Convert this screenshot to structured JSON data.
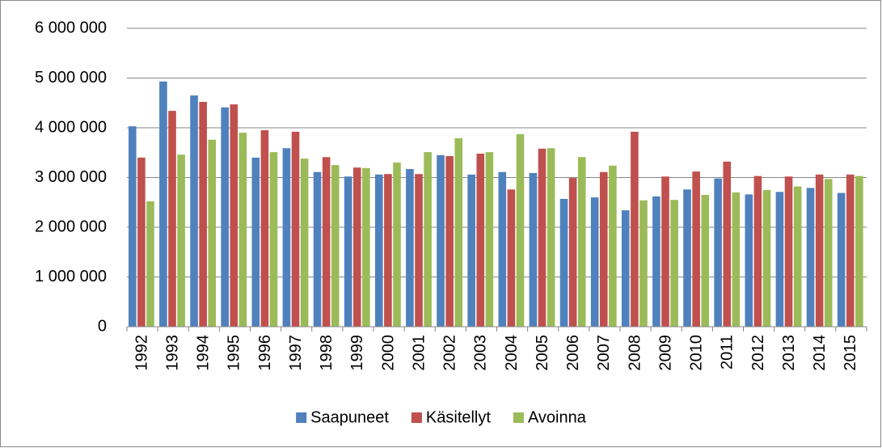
{
  "chart_data": {
    "type": "bar",
    "categories": [
      "1992",
      "1993",
      "1994",
      "1995",
      "1996",
      "1997",
      "1998",
      "1999",
      "2000",
      "2001",
      "2002",
      "2003",
      "2004",
      "2005",
      "2006",
      "2007",
      "2008",
      "2009",
      "2010",
      "2011",
      "2012",
      "2013",
      "2014",
      "2015"
    ],
    "series": [
      {
        "name": "Saapuneet",
        "color": "#4f81bd",
        "values": [
          4030000,
          4930000,
          4650000,
          4410000,
          3400000,
          3590000,
          3110000,
          3020000,
          3060000,
          3170000,
          3450000,
          3060000,
          3110000,
          3090000,
          2570000,
          2600000,
          2340000,
          2620000,
          2760000,
          2980000,
          2660000,
          2710000,
          2790000,
          2690000
        ]
      },
      {
        "name": "Käsitellyt",
        "color": "#c0504d",
        "values": [
          3400000,
          4340000,
          4520000,
          4470000,
          3950000,
          3920000,
          3410000,
          3200000,
          3070000,
          3070000,
          3430000,
          3480000,
          2760000,
          3580000,
          2990000,
          3110000,
          3920000,
          3020000,
          3120000,
          3320000,
          3030000,
          3020000,
          3060000,
          3060000
        ]
      },
      {
        "name": "Avoinna",
        "color": "#9bbb59",
        "values": [
          2520000,
          3460000,
          3760000,
          3900000,
          3510000,
          3380000,
          3250000,
          3190000,
          3300000,
          3510000,
          3790000,
          3510000,
          3870000,
          3590000,
          3410000,
          3240000,
          2540000,
          2550000,
          2650000,
          2700000,
          2750000,
          2820000,
          2970000,
          3030000
        ]
      }
    ],
    "ylim": [
      0,
      6000000
    ],
    "yticks": [
      0,
      {
        "value": 1000000,
        "label": "1 000 000"
      },
      {
        "value": 2000000,
        "label": "2 000 000"
      },
      {
        "value": 3000000,
        "label": "3 000 000"
      },
      {
        "value": 4000000,
        "label": "4 000 000"
      },
      {
        "value": 5000000,
        "label": "5 000 000"
      },
      {
        "value": 6000000,
        "label": "6 000 000"
      }
    ],
    "grid": true,
    "legend": "bottom"
  }
}
